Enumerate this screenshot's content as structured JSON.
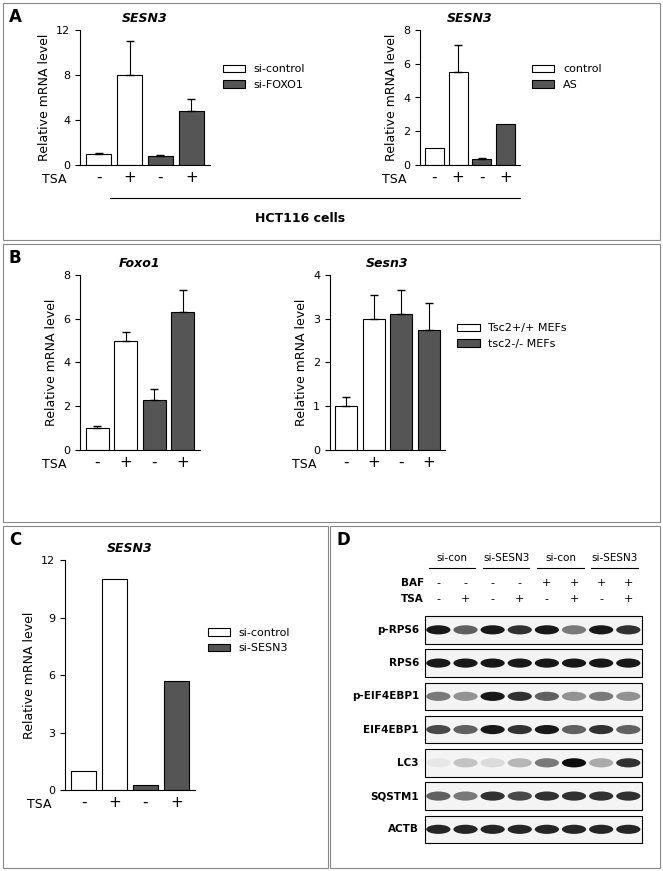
{
  "panel_labels": [
    "A",
    "B",
    "C",
    "D"
  ],
  "chart_data": [
    {
      "type": "bar",
      "title": "SESN3",
      "y_label": "Relative mRNA level",
      "x_label": "TSA",
      "categories": [
        "-",
        "+",
        "-",
        "+"
      ],
      "ylim": [
        0,
        12
      ],
      "yticks": [
        0,
        4,
        8,
        12
      ],
      "legend": "right",
      "annotations": [
        "HCT116 cells"
      ],
      "series": [
        {
          "name": "si-control",
          "color": "#ffffff",
          "values": [
            1.0,
            8.0,
            null,
            null
          ],
          "errors": [
            0.05,
            3.0,
            null,
            null
          ]
        },
        {
          "name": "si-FOXO1",
          "color": "#555555",
          "values": [
            null,
            null,
            0.8,
            4.8
          ],
          "errors": [
            null,
            null,
            0.1,
            1.1
          ]
        }
      ]
    },
    {
      "type": "bar",
      "title": "SESN3",
      "y_label": "Relative mRNA level",
      "x_label": "TSA",
      "categories": [
        "-",
        "+",
        "-",
        "+"
      ],
      "ylim": [
        0,
        8
      ],
      "yticks": [
        0,
        2,
        4,
        6,
        8
      ],
      "legend": "right",
      "series": [
        {
          "name": "control",
          "color": "#ffffff",
          "values": [
            1.0,
            5.5,
            null,
            null
          ],
          "errors": [
            null,
            1.6,
            null,
            null
          ]
        },
        {
          "name": "AS",
          "color": "#555555",
          "values": [
            null,
            null,
            0.35,
            2.4
          ],
          "errors": [
            null,
            null,
            0.05,
            null
          ]
        }
      ]
    },
    {
      "type": "bar",
      "title": "Foxo1",
      "y_label": "Relative mRNA level",
      "x_label": "TSA",
      "categories": [
        "-",
        "+",
        "-",
        "+"
      ],
      "ylim": [
        0,
        8
      ],
      "yticks": [
        0,
        2,
        4,
        6,
        8
      ],
      "series": [
        {
          "name": "Tsc2+/+ MEFs",
          "color": "#ffffff",
          "values": [
            1.0,
            5.0,
            null,
            null
          ],
          "errors": [
            0.08,
            0.4,
            null,
            null
          ]
        },
        {
          "name": "tsc2-/- MEFs",
          "color": "#555555",
          "values": [
            null,
            null,
            2.3,
            6.3
          ],
          "errors": [
            null,
            null,
            0.5,
            1.0
          ]
        }
      ]
    },
    {
      "type": "bar",
      "title": "Sesn3",
      "y_label": "Relative mRNA level",
      "x_label": "TSA",
      "categories": [
        "-",
        "+",
        "-",
        "+"
      ],
      "ylim": [
        0,
        4
      ],
      "yticks": [
        0,
        1,
        2,
        3,
        4
      ],
      "legend": "right",
      "series": [
        {
          "name": "Tsc2+/+ MEFs",
          "color": "#ffffff",
          "values": [
            1.0,
            3.0,
            null,
            null
          ],
          "errors": [
            0.2,
            0.55,
            null,
            null
          ]
        },
        {
          "name": "tsc2-/- MEFs",
          "color": "#555555",
          "values": [
            null,
            null,
            3.1,
            2.75
          ],
          "errors": [
            null,
            null,
            0.55,
            0.6
          ]
        }
      ]
    },
    {
      "type": "bar",
      "title": "SESN3",
      "y_label": "Relative mRNA level",
      "x_label": "TSA",
      "categories": [
        "-",
        "+",
        "-",
        "+"
      ],
      "ylim": [
        0,
        12
      ],
      "yticks": [
        0,
        3,
        6,
        9,
        12
      ],
      "legend": "right",
      "series": [
        {
          "name": "si-control",
          "color": "#ffffff",
          "values": [
            1.0,
            11.0,
            null,
            null
          ]
        },
        {
          "name": "si-SESN3",
          "color": "#555555",
          "values": [
            null,
            null,
            0.25,
            5.7
          ]
        }
      ]
    }
  ],
  "blot": {
    "groups": [
      "si-con",
      "si-SESN3",
      "si-con",
      "si-SESN3"
    ],
    "conditions": [
      {
        "name": "BAF",
        "lanes": [
          "-",
          "-",
          "-",
          "-",
          "+",
          "+",
          "+",
          "+"
        ]
      },
      {
        "name": "TSA",
        "lanes": [
          "-",
          "+",
          "-",
          "+",
          "-",
          "+",
          "-",
          "+"
        ]
      }
    ],
    "rows": [
      {
        "name": "p-RPS6",
        "bands": [
          0.9,
          0.6,
          0.9,
          0.8,
          0.9,
          0.5,
          0.9,
          0.8
        ]
      },
      {
        "name": "RPS6",
        "bands": [
          0.9,
          0.9,
          0.9,
          0.9,
          0.9,
          0.9,
          0.9,
          0.9
        ]
      },
      {
        "name": "p-EIF4EBP1",
        "bands": [
          0.5,
          0.4,
          0.9,
          0.8,
          0.6,
          0.4,
          0.5,
          0.4
        ]
      },
      {
        "name": "EIF4EBP1",
        "bands": [
          0.7,
          0.6,
          0.9,
          0.8,
          0.9,
          0.6,
          0.8,
          0.6
        ]
      },
      {
        "name": "LC3",
        "bands": [
          0.05,
          0.2,
          0.1,
          0.25,
          0.5,
          0.95,
          0.3,
          0.8
        ]
      },
      {
        "name": "SQSTM1",
        "bands": [
          0.6,
          0.5,
          0.8,
          0.7,
          0.8,
          0.8,
          0.8,
          0.8
        ]
      },
      {
        "name": "ACTB",
        "bands": [
          0.85,
          0.85,
          0.85,
          0.85,
          0.85,
          0.85,
          0.85,
          0.85
        ]
      }
    ]
  }
}
